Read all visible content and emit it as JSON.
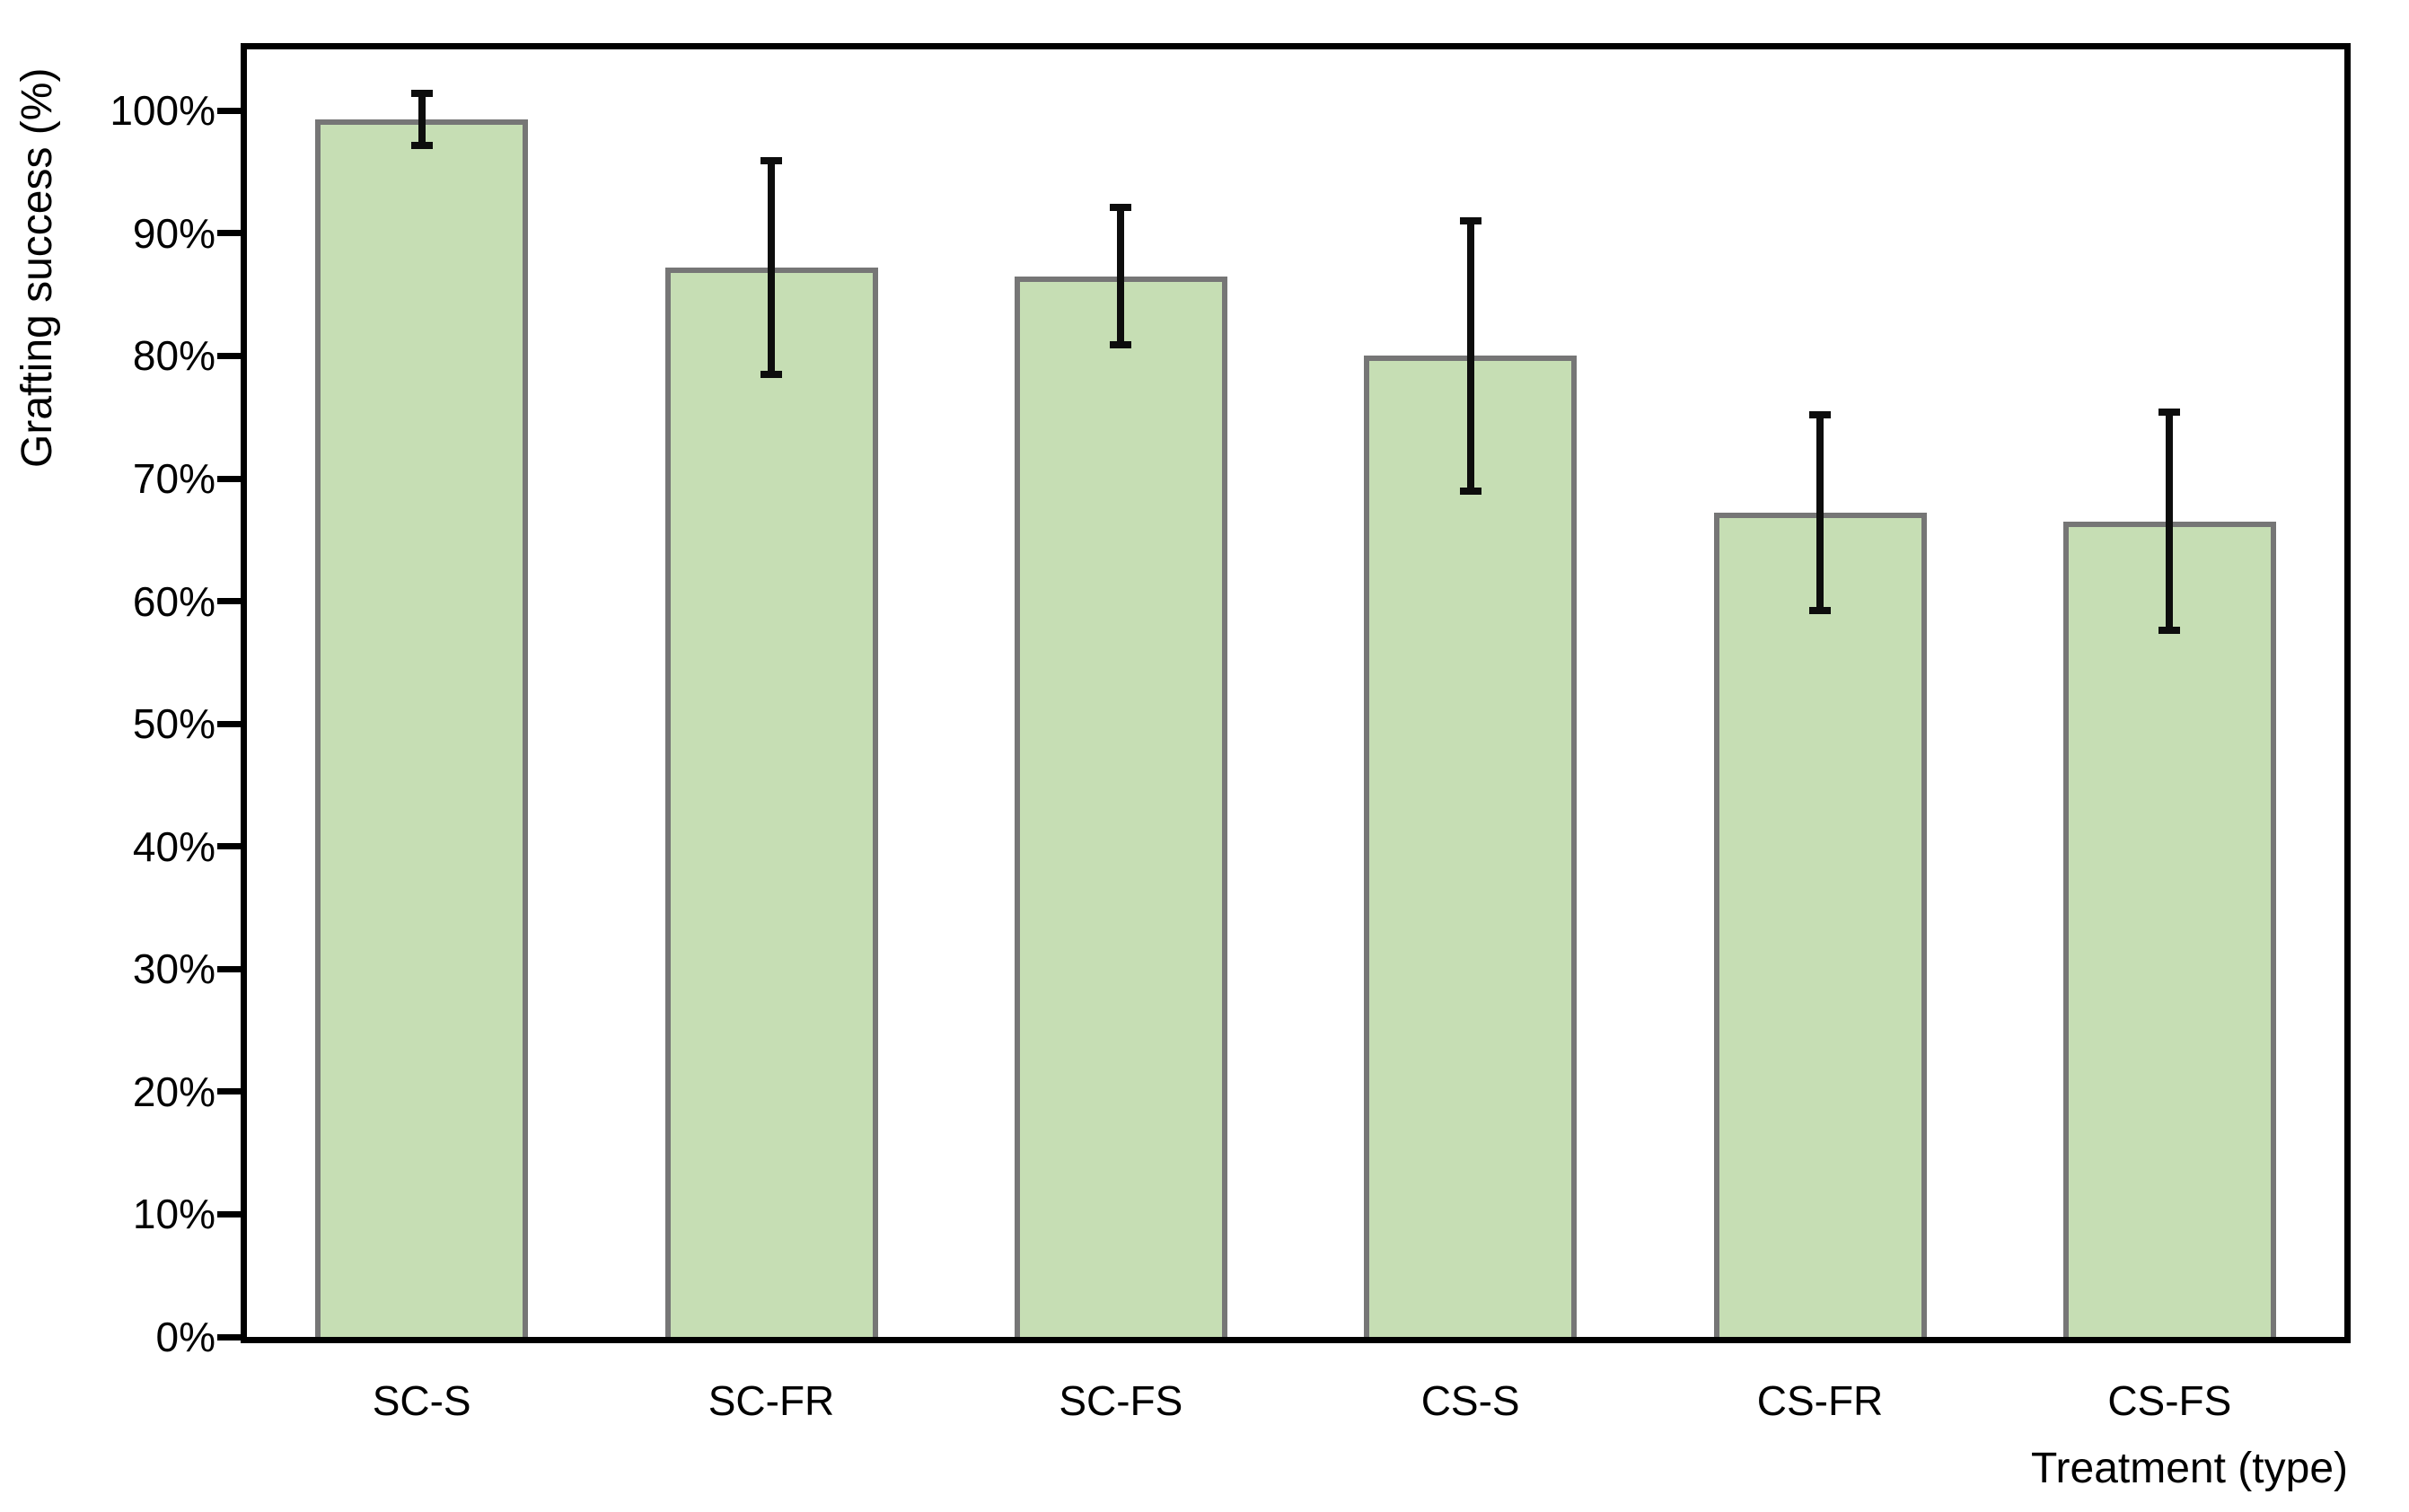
{
  "chart_data": {
    "type": "bar",
    "categories": [
      "SC-S",
      "SC-FR",
      "SC-FS",
      "CS-S",
      "CS-FR",
      "CS-FS"
    ],
    "values": [
      99.3,
      87.2,
      86.5,
      80.0,
      67.2,
      66.5
    ],
    "error_bars": [
      2.1,
      8.7,
      5.6,
      11.0,
      8.0,
      8.9
    ],
    "title": "",
    "xlabel": "Treatment (type)",
    "ylabel": "Grafting success (%)",
    "ylim": [
      0,
      105
    ],
    "y_tick_values": [
      0,
      10,
      20,
      30,
      40,
      50,
      60,
      70,
      80,
      90,
      100
    ],
    "y_tick_labels": [
      "0%",
      "10%",
      "20%",
      "30%",
      "40%",
      "50%",
      "60%",
      "70%",
      "80%",
      "90%",
      "100%"
    ],
    "grid": "off",
    "legend": "none",
    "colors": {
      "bar_fill": "#c6deb4",
      "bar_border": "#767676",
      "error_bar": "#0d0d0d",
      "axis": "#000000",
      "background": "#ffffff"
    }
  }
}
